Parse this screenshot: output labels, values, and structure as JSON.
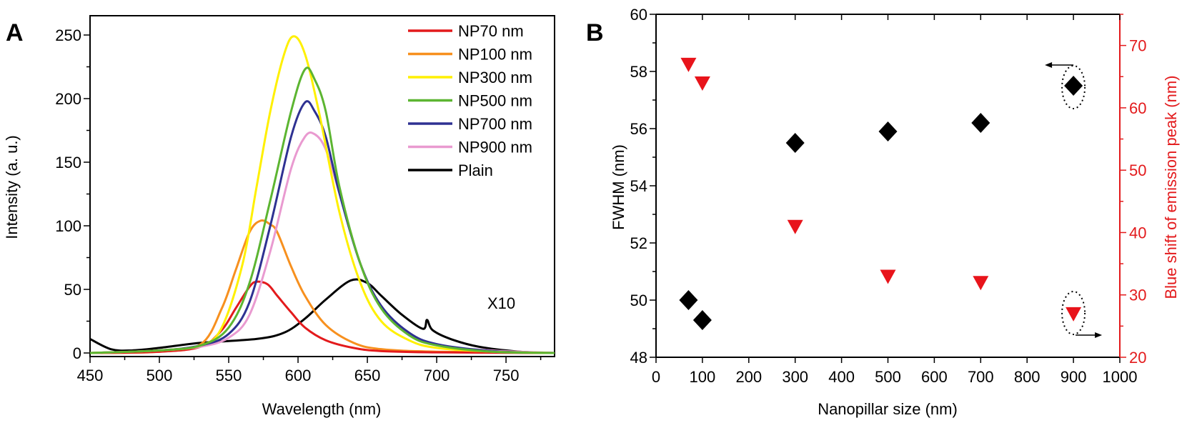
{
  "chart_data": [
    {
      "panel_label": "A",
      "type": "line",
      "xlabel": "Wavelength (nm)",
      "ylabel": "Intensity (a. u.)",
      "xlim": [
        450,
        785
      ],
      "ylim": [
        -3,
        260
      ],
      "xticks": [
        450,
        500,
        550,
        600,
        650,
        700,
        750
      ],
      "yticks": [
        0,
        50,
        100,
        150,
        200,
        250
      ],
      "grid": false,
      "legend_position": "top-right",
      "annotation": "X10",
      "series": [
        {
          "name": "NP70 nm",
          "color": "#e31a1c",
          "x": [
            450,
            500,
            530,
            545,
            555,
            565,
            570,
            578,
            585,
            595,
            605,
            620,
            640,
            660,
            700,
            785
          ],
          "y": [
            0,
            1,
            5,
            18,
            35,
            52,
            56,
            54,
            45,
            32,
            20,
            10,
            4,
            1.5,
            0.5,
            0
          ]
        },
        {
          "name": "NP100 nm",
          "color": "#f7901e",
          "x": [
            450,
            500,
            530,
            545,
            555,
            565,
            573,
            580,
            585,
            595,
            605,
            620,
            640,
            660,
            700,
            785
          ],
          "y": [
            0,
            1,
            7,
            35,
            65,
            95,
            104,
            101,
            95,
            68,
            45,
            22,
            8,
            3,
            1,
            0
          ]
        },
        {
          "name": "NP300 nm",
          "color": "#fff000",
          "x": [
            450,
            500,
            530,
            545,
            560,
            570,
            580,
            590,
            597,
            605,
            615,
            630,
            645,
            660,
            680,
            700,
            740,
            785
          ],
          "y": [
            0,
            2,
            6,
            20,
            70,
            130,
            190,
            235,
            249,
            235,
            190,
            110,
            55,
            25,
            10,
            4,
            1,
            0
          ]
        },
        {
          "name": "NP500 nm",
          "color": "#5cb531",
          "x": [
            450,
            500,
            530,
            550,
            565,
            580,
            595,
            605,
            612,
            620,
            630,
            645,
            660,
            680,
            700,
            740,
            785
          ],
          "y": [
            0,
            2,
            6,
            20,
            55,
            120,
            190,
            223,
            215,
            190,
            130,
            70,
            35,
            14,
            6,
            1,
            0
          ]
        },
        {
          "name": "NP700 nm",
          "color": "#2e3192",
          "x": [
            450,
            500,
            530,
            550,
            565,
            580,
            595,
            605,
            612,
            620,
            630,
            645,
            660,
            680,
            700,
            740,
            785
          ],
          "y": [
            0,
            2,
            6,
            15,
            40,
            100,
            170,
            197,
            190,
            170,
            125,
            70,
            37,
            16,
            7,
            1.5,
            0
          ]
        },
        {
          "name": "NP900 nm",
          "color": "#e99ad0",
          "x": [
            450,
            500,
            530,
            550,
            565,
            580,
            595,
            605,
            612,
            620,
            630,
            645,
            660,
            680,
            700,
            740,
            785
          ],
          "y": [
            0,
            2,
            5,
            12,
            30,
            80,
            145,
            170,
            172,
            160,
            125,
            70,
            37,
            15,
            6,
            2,
            0
          ]
        },
        {
          "name": "Plain",
          "color": "#000000",
          "x": [
            450,
            465,
            480,
            500,
            530,
            570,
            590,
            605,
            620,
            638,
            650,
            660,
            675,
            690,
            693,
            697,
            710,
            730,
            760,
            785
          ],
          "y": [
            11,
            3,
            2,
            4,
            8,
            11,
            16,
            27,
            42,
            57,
            55,
            45,
            30,
            19,
            26,
            18,
            11,
            5,
            1,
            0
          ]
        }
      ]
    },
    {
      "panel_label": "B",
      "type": "scatter",
      "xlabel": "Nanopillar size (nm)",
      "ylabel": "FWHM (nm)",
      "ylabel_right": "Blue shift of emission peak (nm)",
      "xlim": [
        0,
        1000
      ],
      "ylim": [
        48,
        60
      ],
      "ylim_right": [
        20,
        75
      ],
      "xticks": [
        0,
        100,
        200,
        300,
        400,
        500,
        600,
        700,
        800,
        900,
        1000
      ],
      "yticks": [
        48,
        50,
        52,
        54,
        56,
        58,
        60
      ],
      "yticks_right": [
        20,
        30,
        40,
        50,
        60,
        70
      ],
      "grid": false,
      "right_axis_color": "#e31a1c",
      "series": [
        {
          "axis": "left",
          "marker": "diamond",
          "color": "#000000",
          "x": [
            70,
            100,
            300,
            500,
            700,
            900
          ],
          "y": [
            50.0,
            49.3,
            55.5,
            55.9,
            56.2,
            57.5
          ]
        },
        {
          "axis": "right",
          "marker": "triangle-down",
          "color": "#e8141b",
          "x": [
            70,
            100,
            300,
            500,
            700,
            900
          ],
          "y": [
            67,
            64,
            41,
            33,
            32,
            27
          ]
        }
      ]
    }
  ]
}
